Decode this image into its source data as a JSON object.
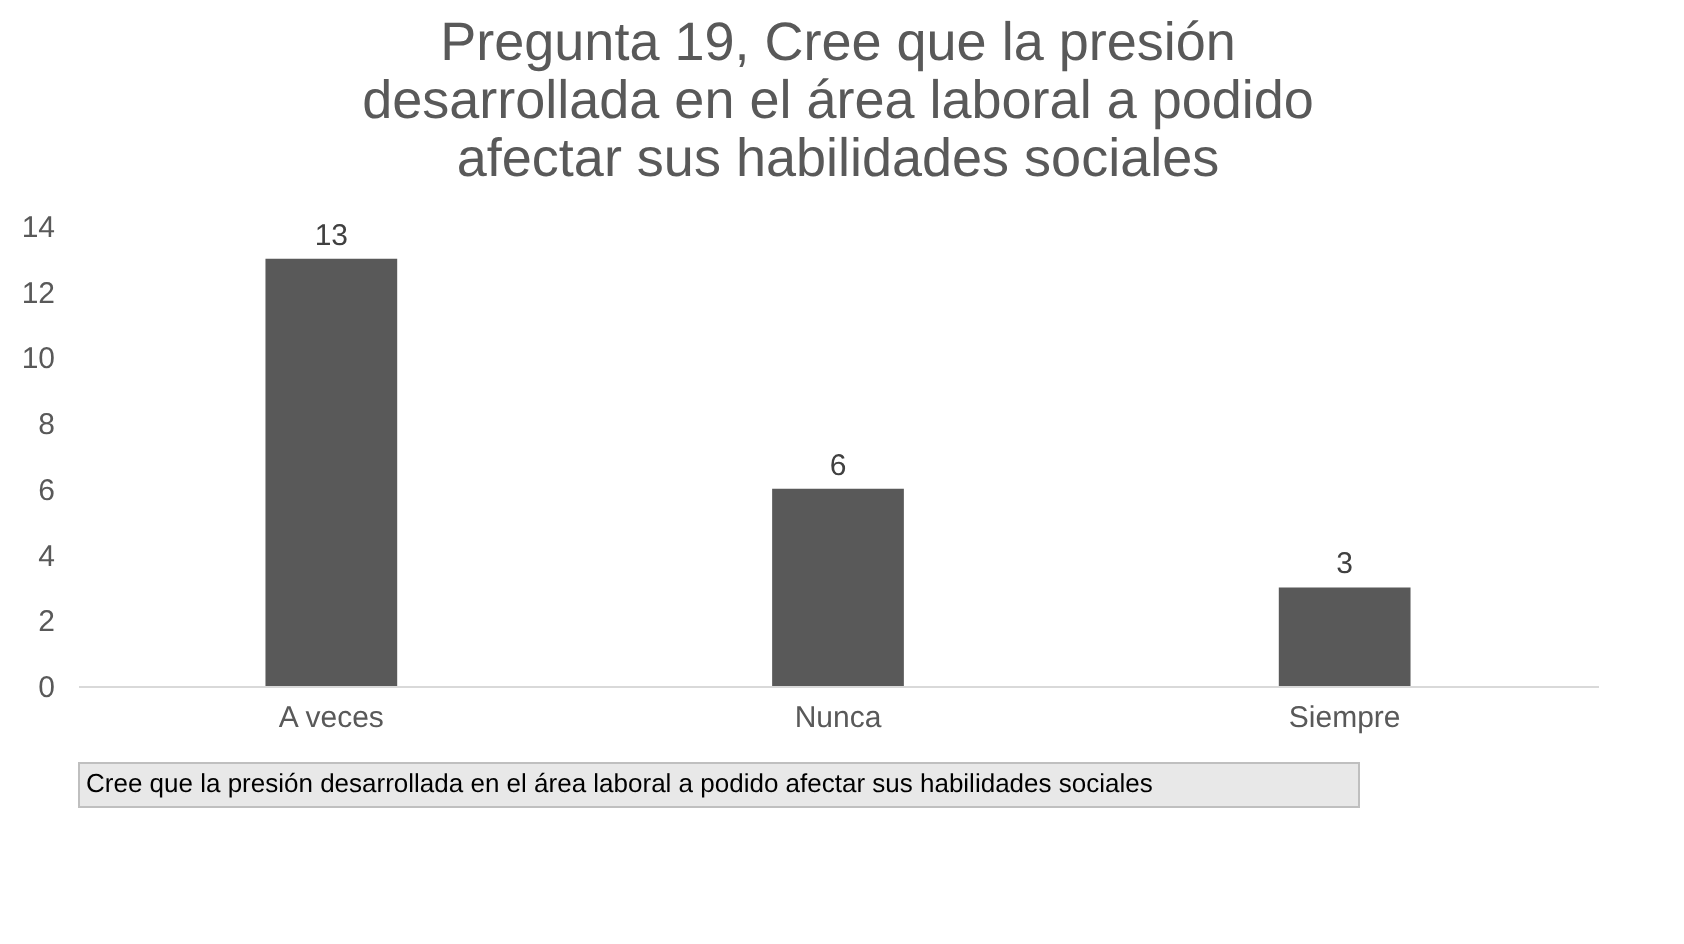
{
  "chart_data": {
    "type": "bar",
    "title": [
      "Pregunta 19, Cree que la presión",
      "desarrollada en el área laboral a podido",
      "afectar sus habilidades sociales"
    ],
    "categories": [
      "A veces",
      "Nunca",
      "Siempre"
    ],
    "values": [
      13,
      6,
      3
    ],
    "color": "#595959",
    "ylim": [
      0,
      14
    ],
    "yticks": [
      0,
      2,
      4,
      6,
      8,
      10,
      12,
      14
    ],
    "grid": false,
    "data_labels": true,
    "annotations": [
      "Cree que la presión desarrollada en el área laboral a podido afectar sus habilidades sociales"
    ]
  }
}
